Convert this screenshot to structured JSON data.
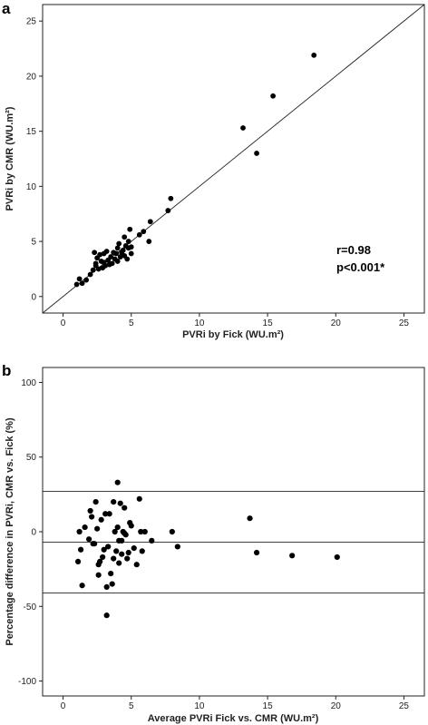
{
  "chart_data": [
    {
      "type": "scatter",
      "panel_label": "a",
      "xlabel": "PVRi by Fick (WU.m²)",
      "ylabel": "PVRi by CMR (WU.m²)",
      "xlim": [
        -1.5,
        26.5
      ],
      "ylim": [
        -1.5,
        26.5
      ],
      "xticks": [
        0,
        5,
        10,
        15,
        20,
        25
      ],
      "yticks": [
        0,
        5,
        10,
        15,
        20,
        25
      ],
      "identity_line": true,
      "annotations": [
        "r=0.98",
        "p<0.001*"
      ],
      "points": [
        [
          1.0,
          1.1
        ],
        [
          1.2,
          1.6
        ],
        [
          1.4,
          1.2
        ],
        [
          1.7,
          1.5
        ],
        [
          2.0,
          2.0
        ],
        [
          2.2,
          2.4
        ],
        [
          2.3,
          4.0
        ],
        [
          2.4,
          3.0
        ],
        [
          2.4,
          2.8
        ],
        [
          2.5,
          3.5
        ],
        [
          2.6,
          2.5
        ],
        [
          2.7,
          3.8
        ],
        [
          2.8,
          3.2
        ],
        [
          2.9,
          2.6
        ],
        [
          3.0,
          3.1
        ],
        [
          3.0,
          3.9
        ],
        [
          3.1,
          2.8
        ],
        [
          3.2,
          4.1
        ],
        [
          3.3,
          3.3
        ],
        [
          3.4,
          2.9
        ],
        [
          3.5,
          3.6
        ],
        [
          3.6,
          3.0
        ],
        [
          3.7,
          4.0
        ],
        [
          3.8,
          3.4
        ],
        [
          3.9,
          3.9
        ],
        [
          4.0,
          4.4
        ],
        [
          4.0,
          3.2
        ],
        [
          4.1,
          4.8
        ],
        [
          4.2,
          3.6
        ],
        [
          4.3,
          4.0
        ],
        [
          4.4,
          4.2
        ],
        [
          4.5,
          3.7
        ],
        [
          4.5,
          5.4
        ],
        [
          4.6,
          4.6
        ],
        [
          4.7,
          3.4
        ],
        [
          4.8,
          5.0
        ],
        [
          4.8,
          4.4
        ],
        [
          4.9,
          6.1
        ],
        [
          5.0,
          3.9
        ],
        [
          5.0,
          4.5
        ],
        [
          5.6,
          5.6
        ],
        [
          5.9,
          5.9
        ],
        [
          6.3,
          5.0
        ],
        [
          6.4,
          6.8
        ],
        [
          7.7,
          7.8
        ],
        [
          7.9,
          8.9
        ],
        [
          13.2,
          15.3
        ],
        [
          14.2,
          13.0
        ],
        [
          15.4,
          18.2
        ],
        [
          18.4,
          21.9
        ]
      ]
    },
    {
      "type": "scatter",
      "panel_label": "b",
      "xlabel": "Average PVRi Fick vs. CMR (WU.m²)",
      "ylabel": "Percentage difference in PVRi, CMR vs. Fick (%)",
      "xlim": [
        -1.5,
        26.5
      ],
      "ylim": [
        -110,
        110
      ],
      "xticks": [
        0,
        5,
        10,
        15,
        20,
        25
      ],
      "yticks": [
        -100,
        -50,
        0,
        50,
        100
      ],
      "reference_lines": [
        27,
        -7,
        -41
      ],
      "points": [
        [
          1.1,
          -20
        ],
        [
          1.2,
          0
        ],
        [
          1.3,
          -12
        ],
        [
          1.4,
          -36
        ],
        [
          1.6,
          3
        ],
        [
          1.9,
          -5
        ],
        [
          2.0,
          14
        ],
        [
          2.1,
          10
        ],
        [
          2.2,
          -8
        ],
        [
          2.3,
          -8
        ],
        [
          2.4,
          20
        ],
        [
          2.5,
          2
        ],
        [
          2.6,
          -22
        ],
        [
          2.6,
          -29
        ],
        [
          2.7,
          -20
        ],
        [
          2.8,
          8
        ],
        [
          2.9,
          -17
        ],
        [
          3.0,
          -12
        ],
        [
          3.1,
          12
        ],
        [
          3.2,
          -56
        ],
        [
          3.2,
          -37
        ],
        [
          3.3,
          -10
        ],
        [
          3.4,
          12
        ],
        [
          3.5,
          -28
        ],
        [
          3.6,
          -35
        ],
        [
          3.7,
          -18
        ],
        [
          3.7,
          20
        ],
        [
          3.8,
          0
        ],
        [
          3.9,
          -13
        ],
        [
          4.0,
          3
        ],
        [
          4.0,
          33
        ],
        [
          4.1,
          -6
        ],
        [
          4.1,
          -21
        ],
        [
          4.2,
          19
        ],
        [
          4.3,
          -6
        ],
        [
          4.3,
          -15
        ],
        [
          4.4,
          0
        ],
        [
          4.5,
          16
        ],
        [
          4.5,
          -1
        ],
        [
          4.6,
          -2
        ],
        [
          4.7,
          -18
        ],
        [
          4.8,
          -14
        ],
        [
          4.9,
          6
        ],
        [
          5.0,
          4
        ],
        [
          5.2,
          -11
        ],
        [
          5.4,
          -22
        ],
        [
          5.6,
          22
        ],
        [
          5.7,
          0
        ],
        [
          5.8,
          -13
        ],
        [
          6.0,
          0
        ],
        [
          6.5,
          -6
        ],
        [
          8.0,
          0
        ],
        [
          8.4,
          -10
        ],
        [
          13.7,
          9
        ],
        [
          14.2,
          -14
        ],
        [
          16.8,
          -16
        ],
        [
          20.1,
          -17
        ]
      ]
    }
  ]
}
